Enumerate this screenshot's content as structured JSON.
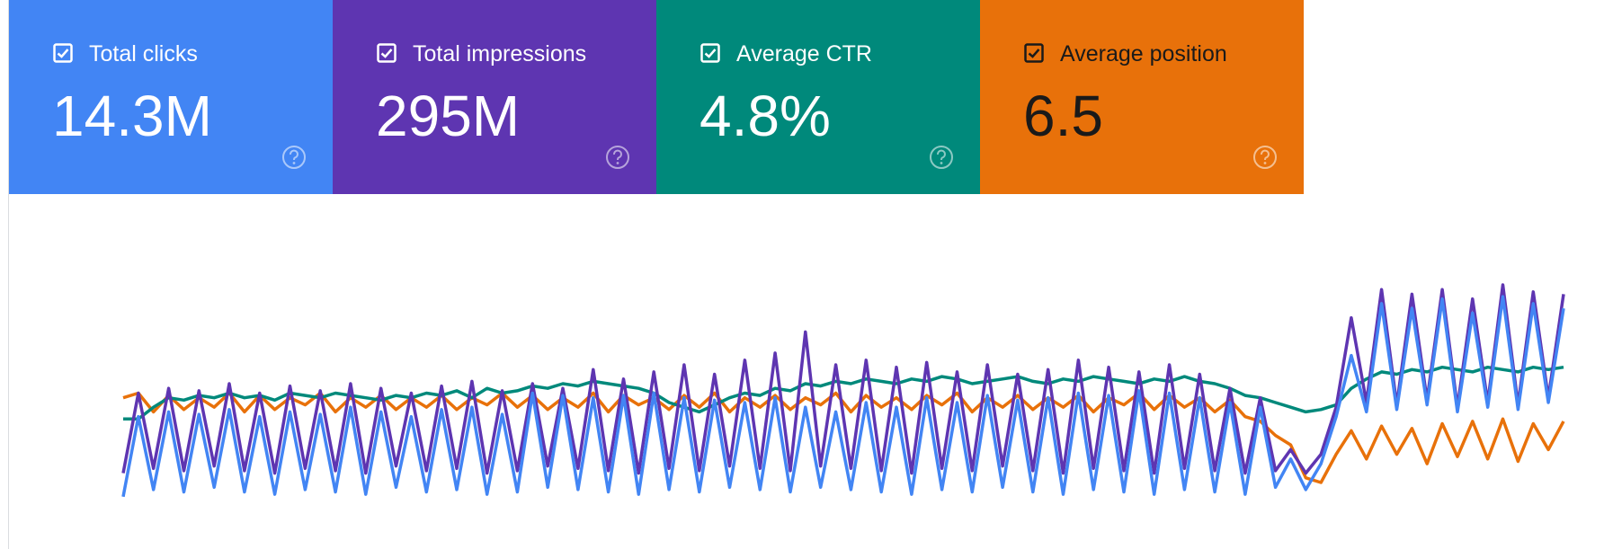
{
  "cards": [
    {
      "label": "Total clicks",
      "value": "14.3M",
      "color": "#4285f4",
      "text_color": "#ffffff"
    },
    {
      "label": "Total impressions",
      "value": "295M",
      "color": "#5e35b1",
      "text_color": "#ffffff"
    },
    {
      "label": "Average CTR",
      "value": "4.8%",
      "color": "#00897b",
      "text_color": "#ffffff"
    },
    {
      "label": "Average position",
      "value": "6.5",
      "color": "#e8710a",
      "text_color": "#1a1a1a"
    }
  ],
  "chart_data": {
    "type": "line",
    "ylim": [
      0,
      100
    ],
    "series": [
      {
        "color": "#e8710a",
        "values": [
          44,
          46,
          38,
          45,
          39,
          44,
          40,
          46,
          38,
          45,
          39,
          44,
          41,
          46,
          38,
          44,
          40,
          45,
          39,
          44,
          40,
          45,
          39,
          44,
          41,
          46,
          40,
          45,
          39,
          44,
          40,
          46,
          38,
          45,
          41,
          44,
          39,
          45,
          40,
          46,
          38,
          44,
          40,
          45,
          39,
          44,
          41,
          46,
          38,
          45,
          40,
          44,
          39,
          45,
          41,
          46,
          38,
          44,
          40,
          45,
          39,
          44,
          40,
          45,
          38,
          44,
          41,
          46,
          39,
          45,
          40,
          44,
          38,
          43,
          36,
          34,
          28,
          24,
          10,
          8,
          20,
          30,
          18,
          32,
          20,
          31,
          16,
          33,
          19,
          34,
          18,
          35,
          17,
          33,
          22,
          34
        ]
      },
      {
        "color": "#00897b",
        "values": [
          35,
          35,
          40,
          44,
          43,
          45,
          44,
          46,
          44,
          45,
          43,
          46,
          45,
          44,
          46,
          45,
          44,
          43,
          45,
          44,
          46,
          45,
          47,
          44,
          48,
          46,
          47,
          49,
          48,
          50,
          49,
          51,
          50,
          49,
          48,
          46,
          42,
          40,
          38,
          41,
          44,
          46,
          45,
          48,
          47,
          50,
          49,
          51,
          50,
          52,
          51,
          50,
          52,
          51,
          53,
          52,
          50,
          51,
          52,
          53,
          51,
          50,
          52,
          51,
          53,
          52,
          51,
          50,
          52,
          51,
          53,
          51,
          50,
          48,
          45,
          44,
          42,
          40,
          38,
          39,
          41,
          48,
          52,
          55,
          54,
          56,
          55,
          57,
          56,
          55,
          57,
          56,
          55,
          57,
          56,
          57
        ]
      },
      {
        "color": "#5e35b1",
        "values": [
          12,
          46,
          14,
          48,
          13,
          47,
          15,
          50,
          13,
          46,
          12,
          49,
          14,
          47,
          13,
          50,
          12,
          48,
          15,
          46,
          13,
          49,
          14,
          51,
          12,
          47,
          13,
          50,
          15,
          48,
          14,
          56,
          13,
          52,
          12,
          55,
          14,
          58,
          13,
          54,
          15,
          60,
          14,
          63,
          13,
          72,
          15,
          58,
          14,
          60,
          13,
          57,
          12,
          59,
          14,
          55,
          13,
          58,
          15,
          54,
          13,
          56,
          12,
          60,
          14,
          57,
          13,
          55,
          12,
          58,
          14,
          54,
          13,
          48,
          12,
          44,
          13,
          22,
          12,
          20,
          40,
          78,
          42,
          90,
          41,
          88,
          43,
          90,
          40,
          86,
          42,
          92,
          41,
          89,
          44,
          88
        ]
      },
      {
        "color": "#4285f4",
        "values": [
          2,
          36,
          5,
          38,
          4,
          37,
          6,
          39,
          4,
          36,
          3,
          38,
          5,
          37,
          4,
          40,
          3,
          38,
          6,
          36,
          4,
          39,
          5,
          40,
          3,
          37,
          4,
          46,
          6,
          45,
          5,
          44,
          4,
          45,
          3,
          46,
          5,
          44,
          4,
          43,
          6,
          42,
          5,
          44,
          4,
          40,
          6,
          38,
          5,
          42,
          4,
          40,
          3,
          44,
          5,
          42,
          4,
          45,
          6,
          43,
          4,
          44,
          3,
          46,
          5,
          45,
          4,
          47,
          3,
          46,
          5,
          44,
          4,
          42,
          3,
          40,
          6,
          18,
          5,
          16,
          36,
          62,
          38,
          84,
          39,
          82,
          41,
          86,
          38,
          80,
          40,
          87,
          39,
          84,
          42,
          82
        ]
      }
    ]
  }
}
